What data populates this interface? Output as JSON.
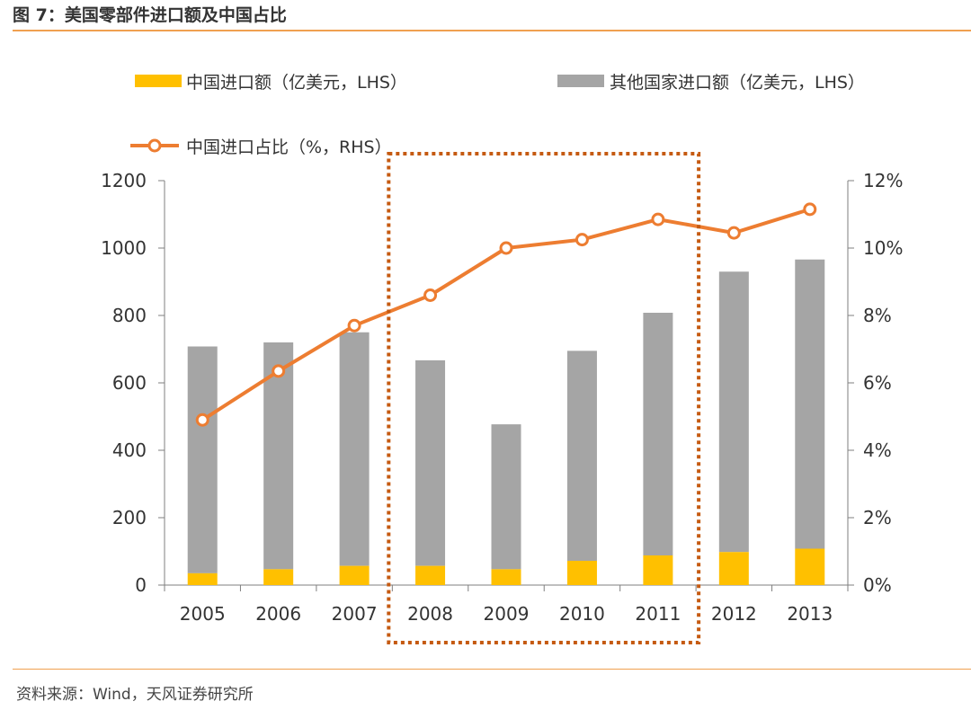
{
  "figure_title": "图 7：美国零部件进口额及中国占比",
  "source": "资料来源：Wind，天风证券研究所",
  "colors": {
    "china_bar": "#ffc000",
    "other_bar": "#a5a5a5",
    "share_line": "#ed7d31",
    "highlight_box": "#c55a11",
    "rule": "#f0a050"
  },
  "chart_data": {
    "type": "bar",
    "stacked": true,
    "categories": [
      "2005",
      "2006",
      "2007",
      "2008",
      "2009",
      "2010",
      "2011",
      "2012",
      "2013"
    ],
    "series": [
      {
        "name": "中国进口额（亿美元，LHS）",
        "type": "bar",
        "axis": "left",
        "values": [
          35,
          47,
          57,
          57,
          47,
          72,
          88,
          98,
          108
        ]
      },
      {
        "name": "其他国家进口额（亿美元，LHS）",
        "type": "bar",
        "axis": "left",
        "values": [
          673,
          673,
          693,
          610,
          430,
          623,
          720,
          832,
          858
        ]
      },
      {
        "name": "中国进口占比（%，RHS）",
        "type": "line",
        "axis": "right",
        "values": [
          4.9,
          6.35,
          7.7,
          8.6,
          10.0,
          10.25,
          10.85,
          10.45,
          11.15
        ]
      }
    ],
    "left_axis": {
      "range": [
        0,
        1200
      ],
      "ticks": [
        "0",
        "200",
        "400",
        "600",
        "800",
        "1000",
        "1200"
      ]
    },
    "right_axis": {
      "range": [
        0,
        12
      ],
      "ticks": [
        "0%",
        "2%",
        "4%",
        "6%",
        "8%",
        "10%",
        "12%"
      ]
    },
    "highlight": {
      "from": "2008",
      "to": "2011",
      "style": "dotted box"
    },
    "legend": "top",
    "grid": false
  }
}
